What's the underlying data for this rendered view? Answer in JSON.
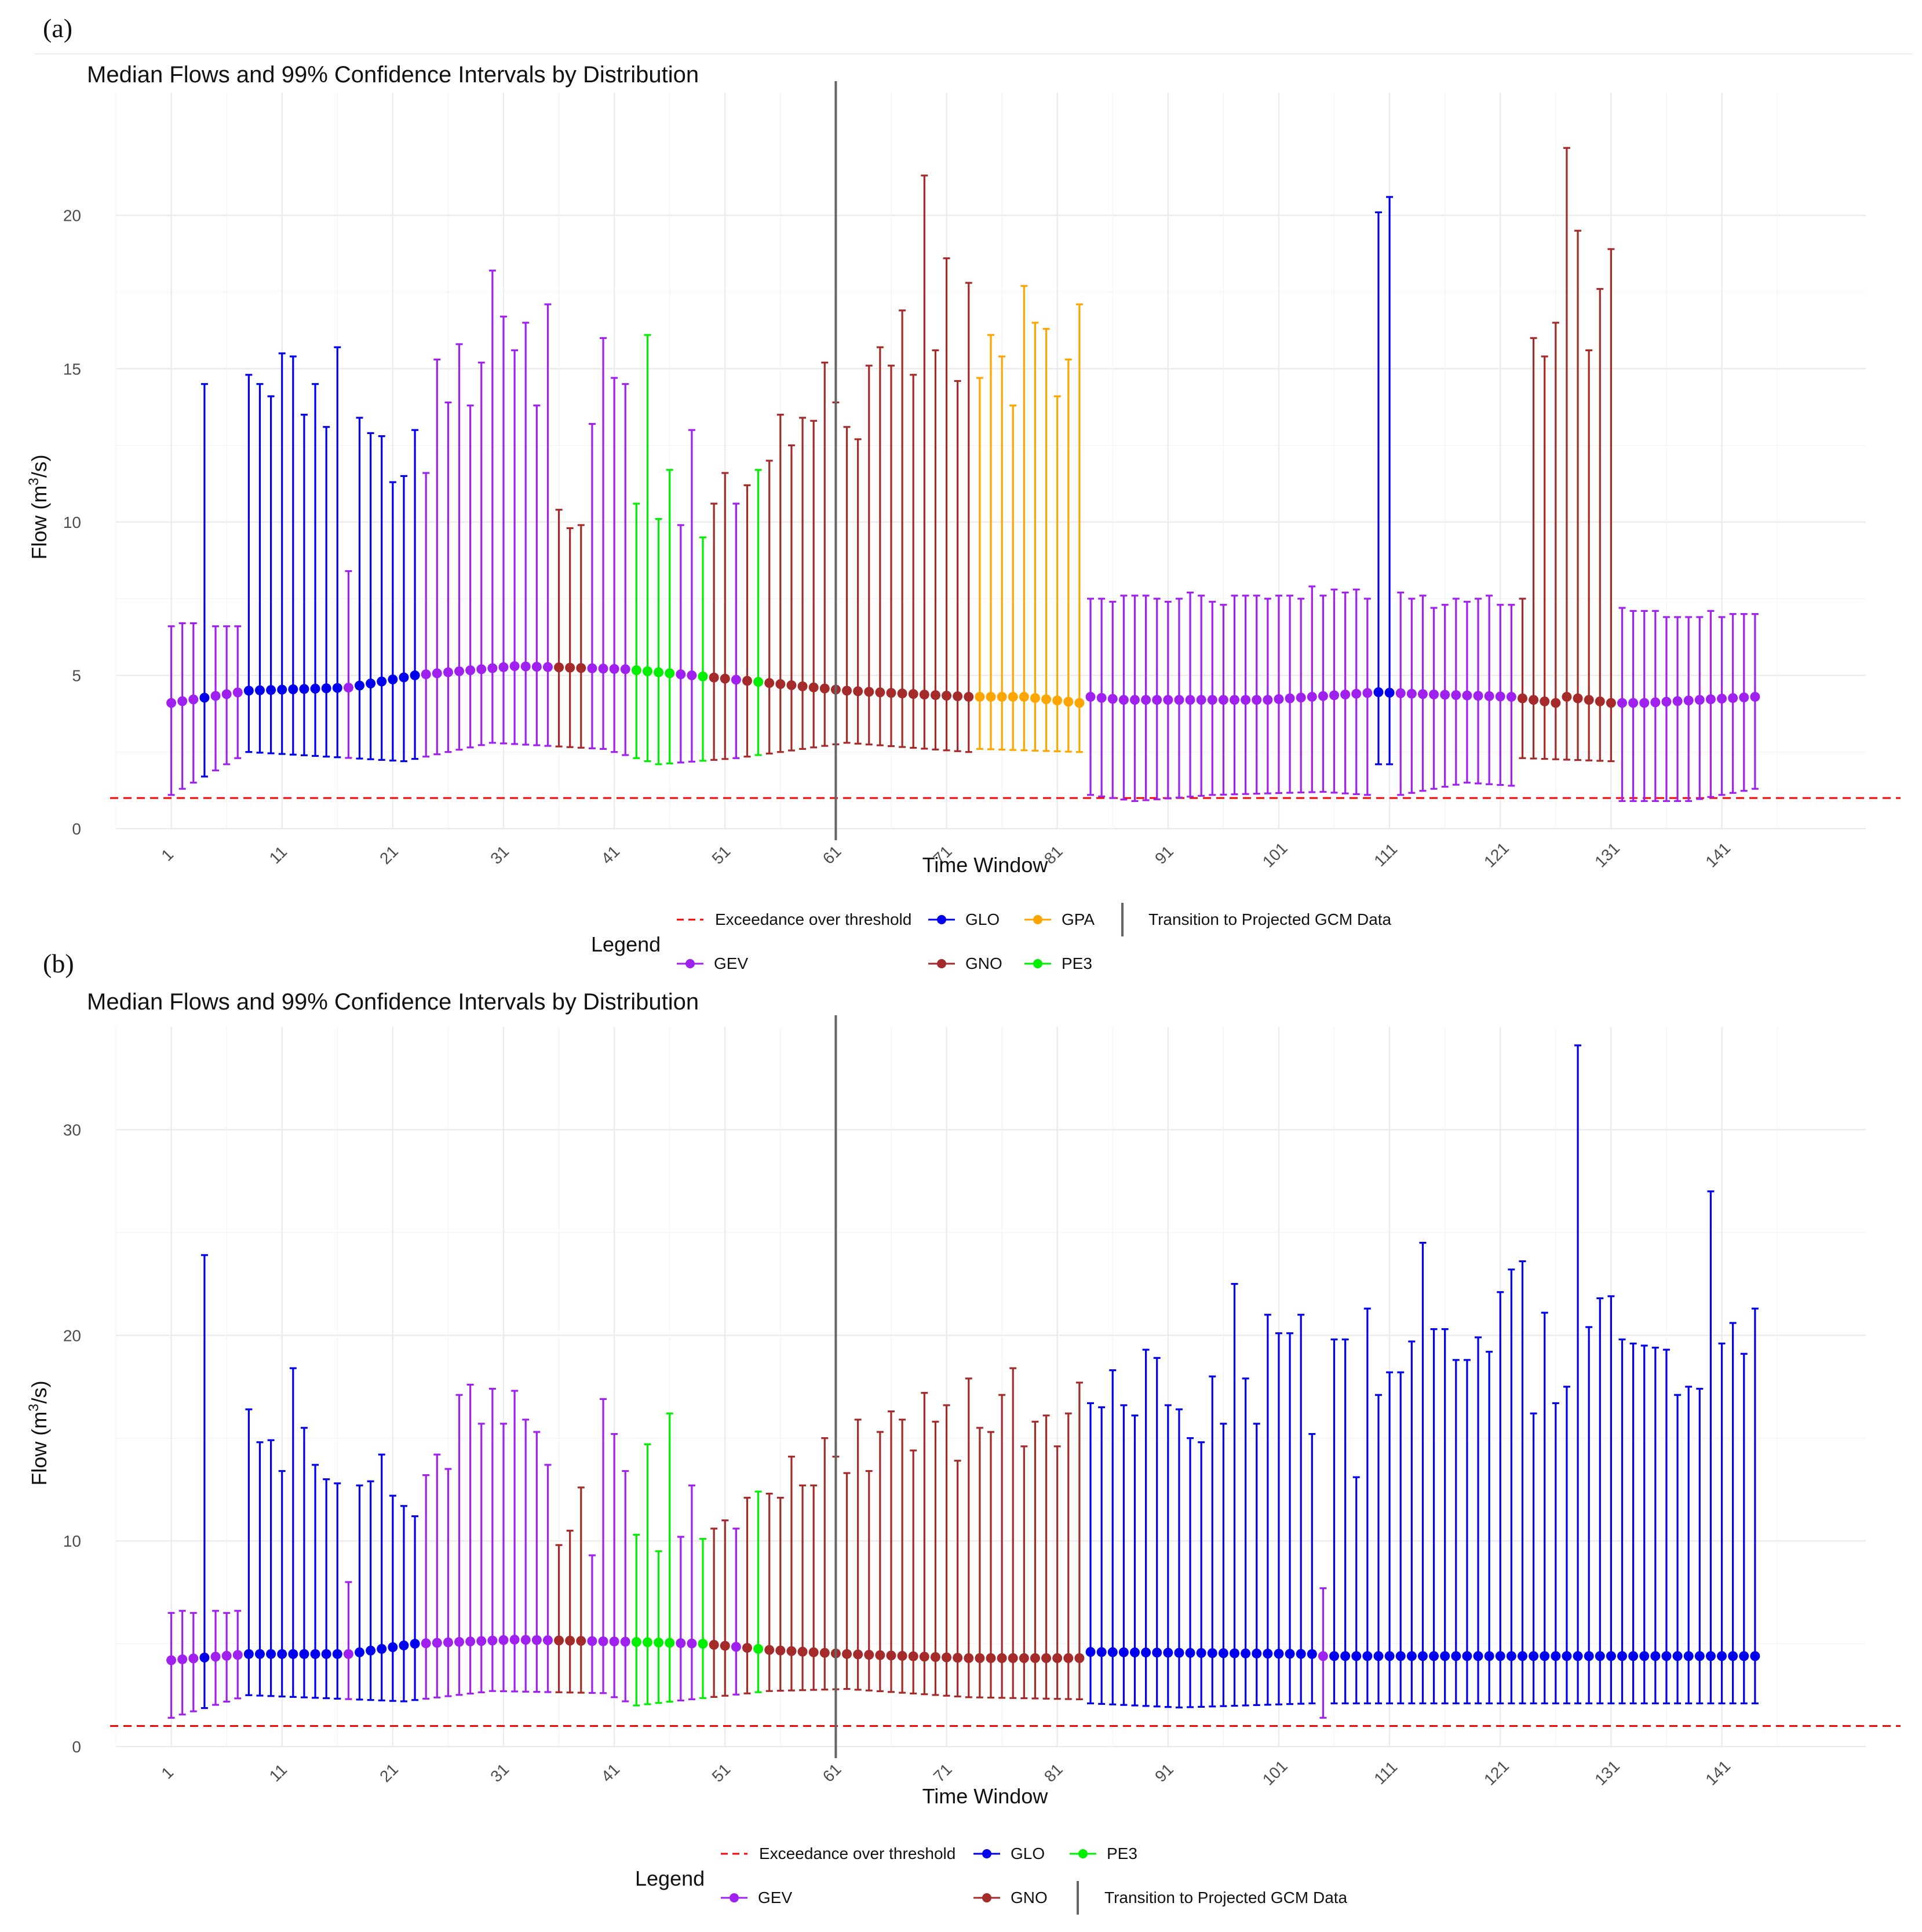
{
  "panels": [
    {
      "label": "(a)",
      "chart_data": {
        "type": "errorbar",
        "title": "Median Flows and 99% Confidence Intervals by Distribution",
        "xlabel": "Time Window",
        "ylabel_main": "Flow (m",
        "ylabel_sup": "3",
        "ylabel_end": "/s)",
        "ylim": [
          0,
          24
        ],
        "yticks": [
          0,
          5,
          10,
          15,
          20
        ],
        "xticks": [
          1,
          11,
          21,
          31,
          41,
          51,
          61,
          71,
          81,
          91,
          101,
          111,
          121,
          131,
          141
        ],
        "threshold": 1.0,
        "transition_x": 61,
        "colors": {
          "GEV": "#a020f0",
          "GLO": "#0000ee",
          "GNO": "#a52a2a",
          "GPA": "#ffa500",
          "PE3": "#00ee00",
          "threshold": "#ff0000",
          "transition": "#666666"
        },
        "legend": {
          "title": "Legend",
          "threshold_label": "Exceedance over threshold",
          "transition_label": "Transition to Projected GCM Data",
          "entries": [
            "GEV",
            "GLO",
            "GNO",
            "GPA",
            "PE3"
          ]
        },
        "segments": [
          {
            "dist": "GEV",
            "from": 1,
            "to": 3
          },
          {
            "dist": "GLO",
            "from": 4,
            "to": 4
          },
          {
            "dist": "GEV",
            "from": 5,
            "to": 7
          },
          {
            "dist": "GLO",
            "from": 8,
            "to": 16
          },
          {
            "dist": "GEV",
            "from": 17,
            "to": 17
          },
          {
            "dist": "GLO",
            "from": 18,
            "to": 23
          },
          {
            "dist": "GEV",
            "from": 24,
            "to": 35
          },
          {
            "dist": "GNO",
            "from": 36,
            "to": 38
          },
          {
            "dist": "GEV",
            "from": 39,
            "to": 42
          },
          {
            "dist": "PE3",
            "from": 43,
            "to": 46
          },
          {
            "dist": "GEV",
            "from": 47,
            "to": 48
          },
          {
            "dist": "PE3",
            "from": 49,
            "to": 49
          },
          {
            "dist": "GNO",
            "from": 50,
            "to": 51
          },
          {
            "dist": "GEV",
            "from": 52,
            "to": 52
          },
          {
            "dist": "GNO",
            "from": 53,
            "to": 53
          },
          {
            "dist": "PE3",
            "from": 54,
            "to": 54
          },
          {
            "dist": "GNO",
            "from": 55,
            "to": 73
          },
          {
            "dist": "GPA",
            "from": 74,
            "to": 83
          },
          {
            "dist": "GEV",
            "from": 84,
            "to": 109
          },
          {
            "dist": "GLO",
            "from": 110,
            "to": 111
          },
          {
            "dist": "GEV",
            "from": 112,
            "to": 122
          },
          {
            "dist": "GNO",
            "from": 123,
            "to": 131
          },
          {
            "dist": "GEV",
            "from": 132,
            "to": 144
          }
        ],
        "median_anchors": [
          [
            1,
            4.1
          ],
          [
            8,
            4.5
          ],
          [
            17,
            4.6
          ],
          [
            23,
            5.0
          ],
          [
            32,
            5.3
          ],
          [
            42,
            5.2
          ],
          [
            48,
            5.0
          ],
          [
            55,
            4.75
          ],
          [
            62,
            4.5
          ],
          [
            73,
            4.3
          ],
          [
            78,
            4.3
          ],
          [
            83,
            4.1
          ],
          [
            84,
            4.3
          ],
          [
            87,
            4.2
          ],
          [
            100,
            4.2
          ],
          [
            110,
            4.45
          ],
          [
            113,
            4.4
          ],
          [
            122,
            4.3
          ],
          [
            126,
            4.1
          ],
          [
            127,
            4.3
          ],
          [
            131,
            4.1
          ],
          [
            134,
            4.1
          ],
          [
            144,
            4.3
          ]
        ],
        "lower_anchors": [
          [
            1,
            1.1
          ],
          [
            8,
            2.5
          ],
          [
            22,
            2.2
          ],
          [
            30,
            2.8
          ],
          [
            40,
            2.6
          ],
          [
            45,
            2.1
          ],
          [
            52,
            2.3
          ],
          [
            62,
            2.8
          ],
          [
            73,
            2.5
          ],
          [
            74,
            2.6
          ],
          [
            83,
            2.5
          ],
          [
            84,
            1.1
          ],
          [
            88,
            0.9
          ],
          [
            95,
            1.1
          ],
          [
            105,
            1.2
          ],
          [
            109,
            1.1
          ],
          [
            110,
            2.1
          ],
          [
            111,
            2.1
          ],
          [
            112,
            1.1
          ],
          [
            118,
            1.5
          ],
          [
            122,
            1.4
          ],
          [
            123,
            2.3
          ],
          [
            131,
            2.2
          ],
          [
            132,
            0.9
          ],
          [
            138,
            0.9
          ],
          [
            144,
            1.3
          ]
        ],
        "upper": [
          6.6,
          6.7,
          6.7,
          14.5,
          6.6,
          6.6,
          6.6,
          14.8,
          14.5,
          14.1,
          15.5,
          15.4,
          13.5,
          14.5,
          13.1,
          15.7,
          8.4,
          13.4,
          12.9,
          12.8,
          11.3,
          11.5,
          13.0,
          11.6,
          15.3,
          13.9,
          15.8,
          13.8,
          15.2,
          18.2,
          16.7,
          15.6,
          16.5,
          13.8,
          17.1,
          10.4,
          9.8,
          9.9,
          13.2,
          16.0,
          14.7,
          14.5,
          10.6,
          16.1,
          10.1,
          11.7,
          9.9,
          13.0,
          9.5,
          10.6,
          11.6,
          10.6,
          11.2,
          11.7,
          12.0,
          13.5,
          12.5,
          13.4,
          13.3,
          15.2,
          13.9,
          13.1,
          12.7,
          15.1,
          15.7,
          15.1,
          16.9,
          14.8,
          21.3,
          15.6,
          18.6,
          14.6,
          17.8,
          14.7,
          16.1,
          15.4,
          13.8,
          17.7,
          16.5,
          16.3,
          14.1,
          15.3,
          17.1,
          7.5,
          7.5,
          7.4,
          7.6,
          7.6,
          7.6,
          7.5,
          7.4,
          7.5,
          7.7,
          7.6,
          7.4,
          7.3,
          7.6,
          7.6,
          7.6,
          7.5,
          7.6,
          7.6,
          7.5,
          7.9,
          7.6,
          7.8,
          7.7,
          7.8,
          7.5,
          20.1,
          20.6,
          7.7,
          7.5,
          7.6,
          7.2,
          7.3,
          7.5,
          7.4,
          7.5,
          7.6,
          7.3,
          7.3,
          7.5,
          16.0,
          15.4,
          16.5,
          22.2,
          19.5,
          15.6,
          17.6,
          18.9,
          7.2,
          7.1,
          7.1,
          7.1,
          6.9,
          6.9,
          6.9,
          6.9,
          7.1,
          6.9,
          7.0,
          7.0,
          7.0
        ]
      }
    },
    {
      "label": "(b)",
      "chart_data": {
        "type": "errorbar",
        "title": "Median Flows and 99% Confidence Intervals by Distribution",
        "xlabel": "Time Window",
        "ylabel_main": "Flow (m",
        "ylabel_sup": "3",
        "ylabel_end": "/s)",
        "ylim": [
          0,
          35
        ],
        "yticks": [
          0,
          10,
          20,
          30
        ],
        "xticks": [
          1,
          11,
          21,
          31,
          41,
          51,
          61,
          71,
          81,
          91,
          101,
          111,
          121,
          131,
          141
        ],
        "threshold": 1.0,
        "transition_x": 61,
        "colors": {
          "GEV": "#a020f0",
          "GLO": "#0000ee",
          "GNO": "#a52a2a",
          "PE3": "#00ee00",
          "threshold": "#ff0000",
          "transition": "#666666"
        },
        "legend": {
          "title": "Legend",
          "threshold_label": "Exceedance over threshold",
          "transition_label": "Transition to Projected GCM Data",
          "entries": [
            "GEV",
            "GLO",
            "GNO",
            "PE3"
          ]
        },
        "segments": [
          {
            "dist": "GEV",
            "from": 1,
            "to": 3
          },
          {
            "dist": "GLO",
            "from": 4,
            "to": 4
          },
          {
            "dist": "GEV",
            "from": 5,
            "to": 7
          },
          {
            "dist": "GLO",
            "from": 8,
            "to": 16
          },
          {
            "dist": "GEV",
            "from": 17,
            "to": 17
          },
          {
            "dist": "GLO",
            "from": 18,
            "to": 23
          },
          {
            "dist": "GEV",
            "from": 24,
            "to": 35
          },
          {
            "dist": "GNO",
            "from": 36,
            "to": 38
          },
          {
            "dist": "GEV",
            "from": 39,
            "to": 42
          },
          {
            "dist": "PE3",
            "from": 43,
            "to": 46
          },
          {
            "dist": "GEV",
            "from": 47,
            "to": 48
          },
          {
            "dist": "PE3",
            "from": 49,
            "to": 49
          },
          {
            "dist": "GNO",
            "from": 50,
            "to": 51
          },
          {
            "dist": "GEV",
            "from": 52,
            "to": 52
          },
          {
            "dist": "GNO",
            "from": 53,
            "to": 53
          },
          {
            "dist": "PE3",
            "from": 54,
            "to": 54
          },
          {
            "dist": "GNO",
            "from": 55,
            "to": 83
          },
          {
            "dist": "GLO",
            "from": 84,
            "to": 104
          },
          {
            "dist": "GEV",
            "from": 105,
            "to": 105
          },
          {
            "dist": "GLO",
            "from": 106,
            "to": 144
          }
        ],
        "median_anchors": [
          [
            1,
            4.2
          ],
          [
            8,
            4.5
          ],
          [
            17,
            4.5
          ],
          [
            23,
            5.0
          ],
          [
            32,
            5.2
          ],
          [
            42,
            5.1
          ],
          [
            49,
            5.0
          ],
          [
            55,
            4.7
          ],
          [
            62,
            4.5
          ],
          [
            73,
            4.3
          ],
          [
            83,
            4.3
          ],
          [
            84,
            4.6
          ],
          [
            104,
            4.5
          ],
          [
            105,
            4.4
          ],
          [
            106,
            4.4
          ],
          [
            144,
            4.4
          ]
        ],
        "lower_anchors": [
          [
            1,
            1.4
          ],
          [
            8,
            2.5
          ],
          [
            22,
            2.2
          ],
          [
            30,
            2.7
          ],
          [
            40,
            2.6
          ],
          [
            43,
            2.0
          ],
          [
            48,
            2.3
          ],
          [
            55,
            2.7
          ],
          [
            62,
            2.8
          ],
          [
            73,
            2.4
          ],
          [
            83,
            2.3
          ],
          [
            84,
            2.1
          ],
          [
            92,
            1.9
          ],
          [
            104,
            2.1
          ],
          [
            105,
            1.4
          ],
          [
            106,
            2.1
          ],
          [
            144,
            2.1
          ]
        ],
        "upper": [
          6.5,
          6.6,
          6.5,
          23.9,
          6.6,
          6.5,
          6.6,
          16.4,
          14.8,
          14.9,
          13.4,
          18.4,
          15.5,
          13.7,
          13.0,
          12.8,
          8.0,
          12.7,
          12.9,
          14.2,
          12.2,
          11.7,
          11.2,
          13.2,
          14.2,
          13.5,
          17.1,
          17.6,
          15.7,
          17.4,
          15.7,
          17.3,
          15.9,
          15.3,
          13.7,
          9.8,
          10.5,
          12.6,
          9.3,
          16.9,
          15.2,
          13.4,
          10.3,
          14.7,
          9.5,
          16.2,
          10.2,
          12.7,
          10.1,
          10.6,
          11.0,
          10.6,
          12.1,
          12.4,
          12.3,
          12.1,
          14.1,
          12.7,
          12.7,
          15.0,
          14.1,
          13.3,
          15.9,
          13.4,
          15.3,
          16.3,
          15.9,
          14.4,
          17.2,
          15.8,
          16.6,
          13.9,
          17.9,
          15.5,
          15.3,
          17.1,
          18.4,
          14.6,
          15.8,
          16.1,
          14.6,
          16.2,
          17.7,
          16.7,
          16.5,
          18.3,
          16.6,
          16.1,
          19.3,
          18.9,
          16.6,
          16.4,
          15.0,
          14.8,
          18.0,
          15.7,
          22.5,
          17.9,
          15.7,
          21.0,
          20.1,
          20.1,
          21.0,
          15.2,
          7.7,
          19.8,
          19.8,
          13.1,
          21.3,
          17.1,
          18.2,
          18.2,
          19.7,
          24.5,
          20.3,
          20.3,
          18.8,
          18.8,
          19.9,
          19.2,
          22.1,
          23.2,
          23.6,
          16.2,
          21.1,
          16.7,
          17.5,
          34.1,
          20.4,
          21.8,
          21.9,
          19.8,
          19.6,
          19.5,
          19.4,
          19.3,
          17.1,
          17.5,
          17.4,
          27.0,
          19.6,
          20.6,
          19.1,
          21.3
        ]
      }
    }
  ]
}
